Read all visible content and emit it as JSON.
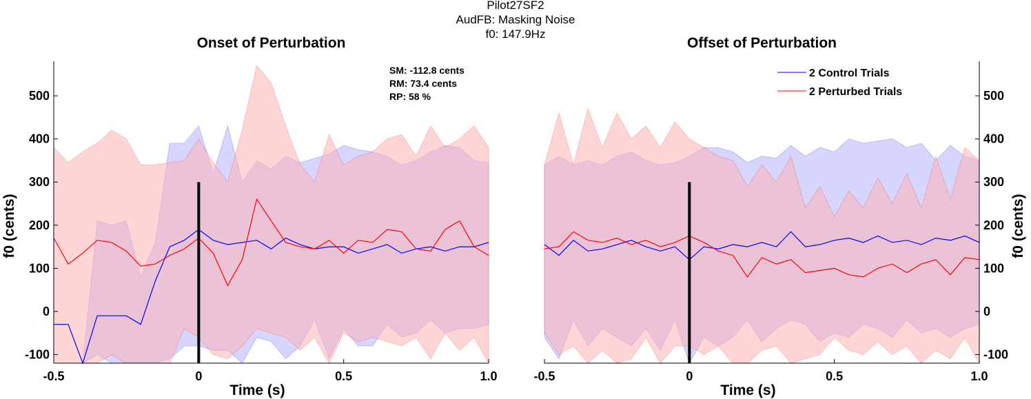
{
  "figure": {
    "suptitle_lines": [
      "Pilot27SF2",
      "AudFB: Masking Noise",
      "f0: 147.9Hz"
    ]
  },
  "colors": {
    "control": "#0000ff",
    "perturbed": "#ff0000",
    "control_band": "#b4b4ff",
    "perturbed_band": "#ffb4b4",
    "marker": "#000000"
  },
  "stats": {
    "sm": "SM: -112.8 cents",
    "rm": "RM: 73.4 cents",
    "rp": "RP: 58 %"
  },
  "legend": {
    "placement": "top-right",
    "control_label": "2 Control Trials",
    "perturbed_label": "2 Perturbed Trials"
  },
  "chart_data": [
    {
      "type": "line",
      "title": "Onset of Perturbation",
      "xlabel": "Time (s)",
      "ylabel": "f0 (cents)",
      "xlim": [
        -0.5,
        1.0
      ],
      "ylim": [
        -120,
        580
      ],
      "xticks": [
        -0.5,
        0,
        0.5,
        1.0
      ],
      "xtick_labels": [
        "-0.5",
        "0",
        "0.5",
        "1.0"
      ],
      "yticks": [
        -100,
        0,
        100,
        200,
        300,
        400,
        500
      ],
      "ytick_labels": [
        "-100",
        "0",
        "100",
        "200",
        "300",
        "400",
        "500"
      ],
      "y_axis_side": "left",
      "grid": false,
      "marker_line": {
        "x": 0,
        "y_range": [
          -120,
          300
        ]
      },
      "x": [
        -0.5,
        -0.45,
        -0.4,
        -0.35,
        -0.3,
        -0.25,
        -0.2,
        -0.15,
        -0.1,
        -0.05,
        0,
        0.05,
        0.1,
        0.15,
        0.2,
        0.25,
        0.3,
        0.35,
        0.4,
        0.45,
        0.5,
        0.55,
        0.6,
        0.65,
        0.7,
        0.75,
        0.8,
        0.85,
        0.9,
        0.95,
        1.0
      ],
      "series": [
        {
          "name": "2 Control Trials",
          "values": [
            -30,
            -30,
            -120,
            -10,
            -10,
            -10,
            -30,
            70,
            150,
            165,
            190,
            165,
            155,
            160,
            165,
            145,
            170,
            155,
            145,
            150,
            150,
            135,
            145,
            155,
            135,
            145,
            150,
            140,
            150,
            150,
            160
          ],
          "upper": [
            -30,
            -30,
            -120,
            210,
            200,
            210,
            80,
            160,
            390,
            390,
            430,
            320,
            430,
            300,
            350,
            330,
            360,
            345,
            355,
            365,
            385,
            375,
            370,
            360,
            340,
            350,
            370,
            385,
            380,
            350,
            345
          ],
          "lower": [
            -30,
            -30,
            -120,
            -100,
            -120,
            -120,
            -120,
            -120,
            -110,
            -80,
            -80,
            -90,
            -90,
            -120,
            -60,
            -70,
            -110,
            -80,
            -20,
            -110,
            -40,
            -80,
            -80,
            -30,
            -60,
            -50,
            -20,
            -50,
            -40,
            -40,
            -30
          ]
        },
        {
          "name": "2 Perturbed Trials",
          "values": [
            170,
            110,
            135,
            165,
            160,
            140,
            105,
            110,
            130,
            145,
            170,
            135,
            60,
            120,
            260,
            210,
            160,
            150,
            145,
            165,
            135,
            165,
            160,
            190,
            185,
            145,
            140,
            190,
            210,
            150,
            130
          ],
          "upper": [
            380,
            345,
            370,
            390,
            420,
            400,
            340,
            340,
            345,
            350,
            400,
            345,
            300,
            420,
            570,
            530,
            430,
            340,
            300,
            410,
            340,
            360,
            370,
            400,
            410,
            360,
            430,
            380,
            400,
            430,
            380
          ],
          "lower": [
            -120,
            -120,
            -120,
            -120,
            -100,
            -120,
            -120,
            -120,
            -120,
            -40,
            -60,
            -100,
            -110,
            -80,
            -40,
            -50,
            -60,
            -90,
            -60,
            -120,
            -50,
            -70,
            -60,
            -70,
            -80,
            -60,
            -110,
            -50,
            -90,
            -60,
            -120
          ]
        }
      ]
    },
    {
      "type": "line",
      "title": "Offset of Perturbation",
      "xlabel": "Time (s)",
      "ylabel": "f0 (cents)",
      "xlim": [
        -0.5,
        1.0
      ],
      "ylim": [
        -120,
        580
      ],
      "xticks": [
        -0.5,
        0,
        0.5,
        1.0
      ],
      "xtick_labels": [
        "-0.5",
        "0",
        "0.5",
        "1.0"
      ],
      "yticks": [
        -100,
        0,
        100,
        200,
        300,
        400,
        500
      ],
      "ytick_labels": [
        "-100",
        "0",
        "100",
        "200",
        "300",
        "400",
        "500"
      ],
      "y_axis_side": "right",
      "grid": false,
      "marker_line": {
        "x": 0,
        "y_range": [
          -120,
          300
        ]
      },
      "x": [
        -0.5,
        -0.45,
        -0.4,
        -0.35,
        -0.3,
        -0.25,
        -0.2,
        -0.15,
        -0.1,
        -0.05,
        0,
        0.05,
        0.1,
        0.15,
        0.2,
        0.25,
        0.3,
        0.35,
        0.4,
        0.45,
        0.5,
        0.55,
        0.6,
        0.65,
        0.7,
        0.75,
        0.8,
        0.85,
        0.9,
        0.95,
        1.0
      ],
      "series": [
        {
          "name": "2 Control Trials",
          "values": [
            155,
            130,
            165,
            140,
            145,
            155,
            165,
            150,
            140,
            150,
            120,
            150,
            145,
            155,
            150,
            160,
            150,
            185,
            150,
            155,
            165,
            170,
            160,
            175,
            160,
            165,
            155,
            170,
            165,
            175,
            160
          ],
          "upper": [
            340,
            360,
            340,
            350,
            340,
            360,
            370,
            350,
            340,
            345,
            360,
            380,
            380,
            370,
            345,
            360,
            355,
            385,
            360,
            380,
            370,
            400,
            390,
            395,
            400,
            380,
            390,
            350,
            385,
            360,
            350
          ],
          "lower": [
            -60,
            -110,
            -20,
            -80,
            -40,
            -60,
            -80,
            -40,
            -90,
            -20,
            -120,
            -60,
            -80,
            -60,
            -20,
            -70,
            -40,
            -20,
            -30,
            -70,
            -50,
            -60,
            -30,
            -40,
            -60,
            -20,
            -50,
            -40,
            -60,
            -40,
            -30
          ]
        },
        {
          "name": "2 Perturbed Trials",
          "values": [
            145,
            150,
            185,
            165,
            160,
            170,
            155,
            165,
            150,
            160,
            175,
            160,
            140,
            130,
            80,
            125,
            110,
            120,
            90,
            95,
            100,
            85,
            80,
            100,
            110,
            90,
            110,
            120,
            85,
            125,
            120
          ],
          "upper": [
            340,
            460,
            340,
            470,
            380,
            460,
            400,
            430,
            380,
            440,
            400,
            380,
            360,
            350,
            290,
            340,
            300,
            360,
            240,
            290,
            220,
            280,
            240,
            310,
            250,
            320,
            240,
            360,
            260,
            380,
            350
          ],
          "lower": [
            -50,
            -100,
            -80,
            -120,
            -90,
            -120,
            -110,
            -60,
            -120,
            -80,
            -80,
            -100,
            -80,
            -120,
            -120,
            -90,
            -80,
            -120,
            -110,
            -100,
            -60,
            -90,
            -100,
            -70,
            -100,
            -80,
            -120,
            -90,
            -110,
            -60,
            -120
          ]
        }
      ]
    }
  ]
}
